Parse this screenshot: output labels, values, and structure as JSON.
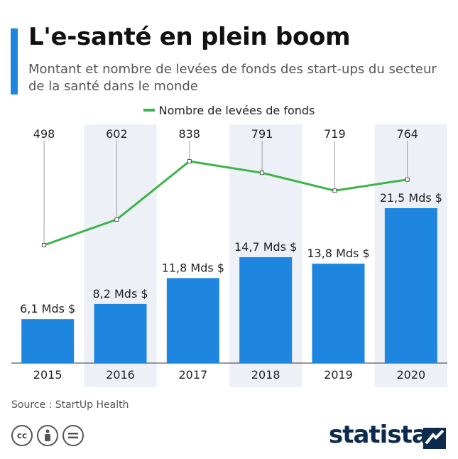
{
  "title": "L'e-santé en plein boom",
  "subtitle": "Montant et nombre de levées de fonds des start-ups du secteur de la santé dans le monde",
  "legend_label": "Nombre de levées de fonds",
  "source": "Source : StartUp Health",
  "brand": "statista",
  "cc_icons": [
    "cc-icon",
    "by-icon",
    "nd-icon"
  ],
  "colors": {
    "accent": "#1f86e0",
    "bar": "#1f86e0",
    "line": "#3cb449",
    "band": "#edf1f7"
  },
  "chart_data": {
    "type": "bar",
    "categories": [
      "2015",
      "2016",
      "2017",
      "2018",
      "2019",
      "2020"
    ],
    "series": [
      {
        "values": [
          6.1,
          8.2,
          11.8,
          14.7,
          13.8,
          21.5
        ],
        "labels": [
          "6,1 Mds $",
          "8,2 Mds $",
          "11,8 Mds $",
          "14,7 Mds $",
          "13,8 Mds $",
          "21,5 Mds $"
        ]
      },
      {
        "name": "Nombre de levées de fonds",
        "type": "line",
        "values": [
          498,
          602,
          838,
          791,
          719,
          764
        ]
      }
    ],
    "legend": "top-center",
    "grid": false
  }
}
